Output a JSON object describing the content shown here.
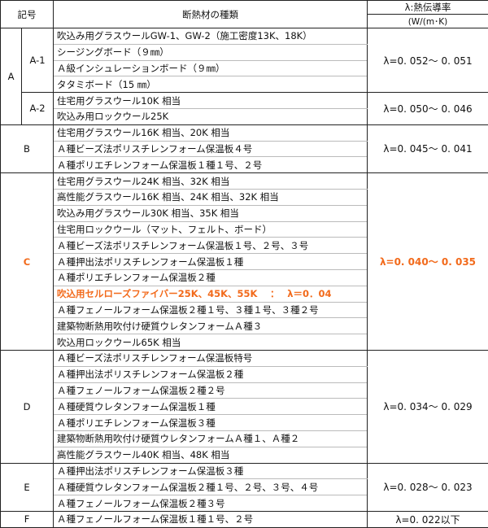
{
  "header": {
    "symbol": "記号",
    "material_type": "断熱材の種類",
    "lambda_title": "λ:熱伝導率",
    "lambda_unit": "(W/(m･K)"
  },
  "highlight_color": "#f26a1b",
  "groups": [
    {
      "symbol": "A",
      "sub": "A-1",
      "lambda": "λ=0. 052～ 0. 051",
      "materials": [
        "吹込み用グラスウールGW-1、GW-2（施工密度13K、18K）",
        "シージングボード（９㎜）",
        "Ａ級インシュレーションボード（９㎜）",
        "タタミボード（15 ㎜）"
      ]
    },
    {
      "symbol": "A",
      "sub": "A-2",
      "lambda": "λ=0. 050～ 0. 046",
      "materials": [
        "住宅用グラスウール10K 相当",
        "吹込み用ロックウール25K"
      ]
    },
    {
      "symbol": "B",
      "lambda": "λ=0. 045～ 0. 041",
      "materials": [
        "住宅用グラスウール16K 相当、20K 相当",
        "Ａ種ビーズ法ポリスチレンフォーム保温板４号",
        "Ａ種ポリエチレンフォーム保温板１種１号、２号"
      ]
    },
    {
      "symbol": "C",
      "highlight": true,
      "lambda": "λ=0. 040～ 0. 035",
      "highlight_row": 7,
      "materials": [
        "住宅用グラスウール24K 相当、32K 相当",
        "高性能グラスウール16K 相当、24K 相当、32K 相当",
        "吹込み用グラスウール30K 相当、35K 相当",
        "住宅用ロックウール（マット、フェルト、ボード）",
        "Ａ種ビーズ法ポリスチレンフォーム保温板１号、２号、３号",
        "Ａ種押出法ポリスチレンフォーム保温板１種",
        "Ａ種ポリエチレンフォーム保温板２種",
        "吹込用セルローズファイバー25K、45K、55K　 ：　 λ＝0．04",
        "Ａ種フェノールフォーム保温板２種１号、３種１号、３種２号",
        "建築物断熱用吹付け硬質ウレタンフォームＡ種３",
        "吹込用ロックウール65K 相当"
      ]
    },
    {
      "symbol": "D",
      "lambda": "λ=0. 034～ 0. 029",
      "materials": [
        "Ａ種ビーズ法ポリスチレンフォーム保温板特号",
        "Ａ種押出法ポリスチレンフォーム保温板２種",
        "Ａ種フェノールフォーム保温板２種２号",
        "Ａ種硬質ウレタンフォーム保温板１種",
        "Ａ種ポリエチレンフォーム保温板３種",
        "建築物断熱用吹付け硬質ウレタンフォームＡ種１、Ａ種２",
        "高性能グラスウール40K 相当、48K 相当"
      ]
    },
    {
      "symbol": "E",
      "lambda": "λ=0. 028～ 0. 023",
      "materials": [
        "Ａ種押出法ポリスチレンフォーム保温板３種",
        "Ａ種硬質ウレタンフォーム保温板２種１号、２号、３号、４号",
        "Ａ種フェノールフォーム保温板２種３号"
      ]
    },
    {
      "symbol": "F",
      "lambda": "λ=0. 022以下",
      "materials": [
        "Ａ種フェノールフォーム保温板１種１号、２号"
      ]
    }
  ]
}
